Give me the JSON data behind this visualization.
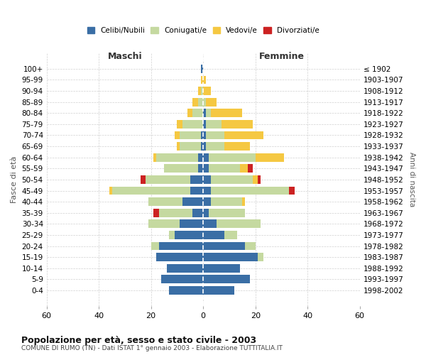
{
  "age_groups": [
    "100+",
    "95-99",
    "90-94",
    "85-89",
    "80-84",
    "75-79",
    "70-74",
    "65-69",
    "60-64",
    "55-59",
    "50-54",
    "45-49",
    "40-44",
    "35-39",
    "30-34",
    "25-29",
    "20-24",
    "15-19",
    "10-14",
    "5-9",
    "0-4"
  ],
  "birth_years": [
    "≤ 1902",
    "1903-1907",
    "1908-1912",
    "1913-1917",
    "1918-1922",
    "1923-1927",
    "1928-1932",
    "1933-1937",
    "1938-1942",
    "1943-1947",
    "1948-1952",
    "1953-1957",
    "1958-1962",
    "1963-1967",
    "1968-1972",
    "1973-1977",
    "1978-1982",
    "1983-1987",
    "1988-1992",
    "1993-1997",
    "1998-2002"
  ],
  "maschi": {
    "celibi": [
      1,
      0,
      0,
      0,
      0,
      0,
      1,
      1,
      2,
      2,
      5,
      5,
      8,
      4,
      9,
      11,
      17,
      18,
      14,
      16,
      13
    ],
    "coniugati": [
      0,
      0,
      1,
      2,
      4,
      8,
      8,
      8,
      16,
      13,
      17,
      30,
      13,
      13,
      12,
      2,
      3,
      0,
      0,
      0,
      0
    ],
    "vedovi": [
      0,
      1,
      1,
      2,
      2,
      2,
      2,
      1,
      1,
      0,
      0,
      1,
      0,
      0,
      0,
      0,
      0,
      0,
      0,
      0,
      0
    ],
    "divorziati": [
      0,
      0,
      0,
      0,
      0,
      0,
      0,
      0,
      0,
      0,
      2,
      0,
      0,
      2,
      0,
      0,
      0,
      0,
      0,
      0,
      0
    ]
  },
  "femmine": {
    "nubili": [
      0,
      0,
      0,
      0,
      1,
      1,
      1,
      1,
      2,
      2,
      3,
      3,
      3,
      2,
      5,
      8,
      16,
      21,
      14,
      18,
      12
    ],
    "coniugate": [
      0,
      0,
      0,
      1,
      2,
      6,
      7,
      7,
      18,
      12,
      16,
      30,
      12,
      14,
      17,
      5,
      4,
      2,
      0,
      0,
      0
    ],
    "vedove": [
      0,
      1,
      3,
      4,
      12,
      12,
      15,
      10,
      11,
      3,
      2,
      0,
      1,
      0,
      0,
      0,
      0,
      0,
      0,
      0,
      0
    ],
    "divorziate": [
      0,
      0,
      0,
      0,
      0,
      0,
      0,
      0,
      0,
      2,
      1,
      2,
      0,
      0,
      0,
      0,
      0,
      0,
      0,
      0,
      0
    ]
  },
  "colors": {
    "celibi_nubili": "#3a6ea5",
    "coniugati": "#c5d9a0",
    "vedovi": "#f5c842",
    "divorziati": "#cc2222"
  },
  "xlim": 60,
  "title": "Popolazione per età, sesso e stato civile - 2003",
  "subtitle": "COMUNE DI RUMO (TN) - Dati ISTAT 1° gennaio 2003 - Elaborazione TUTTITALIA.IT",
  "ylabel_left": "Fasce di età",
  "ylabel_right": "Anni di nascita",
  "xlabel_left": "Maschi",
  "xlabel_right": "Femmine",
  "background_color": "#ffffff",
  "grid_color": "#cccccc"
}
